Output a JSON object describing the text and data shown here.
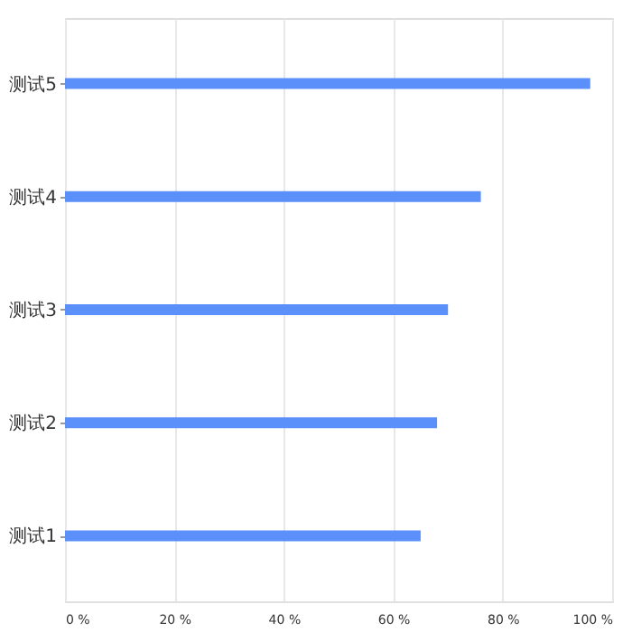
{
  "chart_data": {
    "type": "bar",
    "orientation": "horizontal",
    "categories": [
      "测试5",
      "测试4",
      "测试3",
      "测试2",
      "测试1"
    ],
    "values": [
      96,
      76,
      70,
      68,
      65
    ],
    "color": "#5b8ff9",
    "xlim": [
      0,
      100
    ],
    "xticks": [
      {
        "value": 0,
        "label": "0 %"
      },
      {
        "value": 20,
        "label": "20 %"
      },
      {
        "value": 40,
        "label": "40 %"
      },
      {
        "value": 60,
        "label": "60 %"
      },
      {
        "value": 80,
        "label": "80 %"
      },
      {
        "value": 100,
        "label": "100 %"
      }
    ],
    "grid": "x"
  }
}
